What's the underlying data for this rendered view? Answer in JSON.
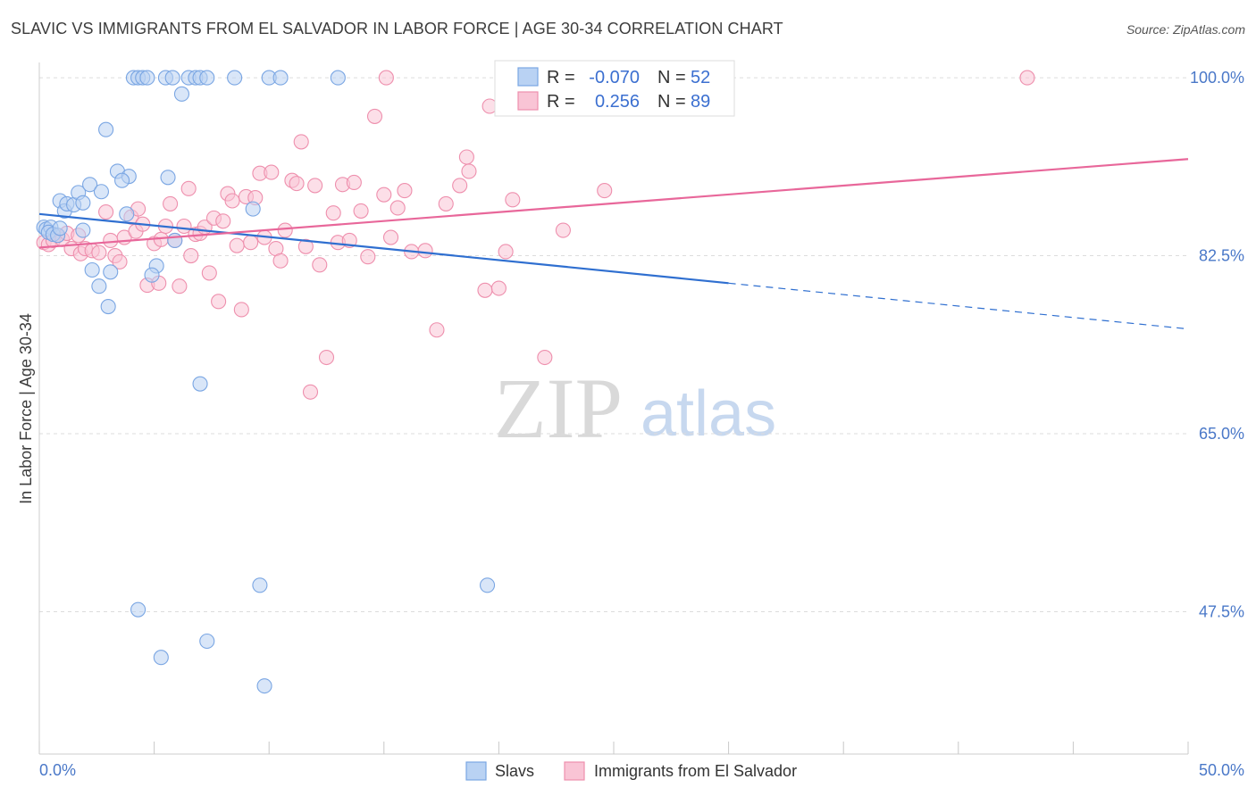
{
  "title": "SLAVIC VS IMMIGRANTS FROM EL SALVADOR IN LABOR FORCE | AGE 30-34 CORRELATION CHART",
  "source": "Source: ZipAtlas.com",
  "watermark": {
    "zip": "ZIP",
    "atlas": "atlas"
  },
  "legend_top": {
    "rows": [
      {
        "r_label": "R =",
        "r_value": "-0.070",
        "n_label": "N =",
        "n_value": "52"
      },
      {
        "r_label": "R =",
        "r_value": "0.256",
        "n_label": "N =",
        "n_value": "89"
      }
    ]
  },
  "legend_bottom": {
    "items": [
      "Slavs",
      "Immigrants from El Salvador"
    ]
  },
  "colors": {
    "slavs_fill": "#b9d2f3",
    "slavs_stroke": "#7aa6e3",
    "slavs_line": "#2f6fd0",
    "salv_fill": "#f9c4d5",
    "salv_stroke": "#ee8fad",
    "salv_line": "#e8679a",
    "tick_label": "#4a78c8",
    "grid": "#dcdcdc"
  },
  "chart_data": {
    "type": "scatter",
    "title": "SLAVIC VS IMMIGRANTS FROM EL SALVADOR IN LABOR FORCE | AGE 30-34 CORRELATION CHART",
    "xlabel": "",
    "ylabel": "In Labor Force | Age 30-34",
    "xlim": [
      0,
      50
    ],
    "ylim": [
      33.5,
      101.5
    ],
    "x_tick_labels": [
      "0.0%",
      "50.0%"
    ],
    "y_ticks": [
      100.0,
      82.5,
      65.0,
      47.5
    ],
    "y_tick_labels": [
      "100.0%",
      "82.5%",
      "65.0%",
      "47.5%"
    ],
    "grid": true,
    "legend_position": "top-center",
    "series": [
      {
        "name": "Slavs",
        "r": -0.07,
        "n": 52,
        "trend": {
          "x": [
            0,
            30,
            50
          ],
          "y": [
            86.6,
            79.8,
            75.3
          ],
          "solid_until_x": 30
        },
        "points": [
          [
            0.2,
            85.3
          ],
          [
            0.3,
            85.1
          ],
          [
            0.5,
            85.3
          ],
          [
            0.4,
            84.8
          ],
          [
            0.6,
            84.6
          ],
          [
            0.8,
            84.5
          ],
          [
            0.9,
            85.2
          ],
          [
            0.9,
            87.9
          ],
          [
            1.1,
            86.9
          ],
          [
            1.2,
            87.6
          ],
          [
            1.5,
            87.5
          ],
          [
            1.7,
            88.7
          ],
          [
            1.9,
            87.7
          ],
          [
            2.2,
            89.5
          ],
          [
            2.7,
            88.8
          ],
          [
            2.9,
            94.9
          ],
          [
            3.4,
            90.8
          ],
          [
            3.9,
            90.3
          ],
          [
            3.6,
            89.9
          ],
          [
            3.8,
            86.6
          ],
          [
            1.9,
            85.0
          ],
          [
            2.3,
            81.1
          ],
          [
            2.6,
            79.5
          ],
          [
            3.1,
            80.9
          ],
          [
            3.0,
            77.5
          ],
          [
            4.1,
            100.0
          ],
          [
            4.3,
            100.0
          ],
          [
            4.5,
            100.0
          ],
          [
            4.7,
            100.0
          ],
          [
            5.5,
            100.0
          ],
          [
            5.8,
            100.0
          ],
          [
            6.2,
            98.4
          ],
          [
            6.5,
            100.0
          ],
          [
            6.8,
            100.0
          ],
          [
            7.0,
            100.0
          ],
          [
            7.3,
            100.0
          ],
          [
            8.5,
            100.0
          ],
          [
            10.0,
            100.0
          ],
          [
            10.5,
            100.0
          ],
          [
            13.0,
            100.0
          ],
          [
            5.6,
            90.2
          ],
          [
            5.1,
            81.5
          ],
          [
            4.9,
            80.6
          ],
          [
            5.9,
            84.0
          ],
          [
            9.3,
            87.1
          ],
          [
            7.0,
            69.9
          ],
          [
            4.3,
            47.7
          ],
          [
            7.3,
            44.6
          ],
          [
            5.3,
            43.0
          ],
          [
            9.6,
            50.1
          ],
          [
            9.8,
            40.2
          ],
          [
            19.5,
            50.1
          ]
        ]
      },
      {
        "name": "Immigrants from El Salvador",
        "r": 0.256,
        "n": 89,
        "trend": {
          "x": [
            0,
            50
          ],
          "y": [
            83.3,
            92.0
          ]
        },
        "points": [
          [
            0.2,
            83.8
          ],
          [
            0.4,
            83.6
          ],
          [
            0.6,
            84.0
          ],
          [
            0.8,
            84.5
          ],
          [
            1.0,
            84.1
          ],
          [
            1.2,
            84.7
          ],
          [
            1.4,
            83.2
          ],
          [
            1.7,
            84.5
          ],
          [
            1.8,
            82.7
          ],
          [
            2.0,
            83.2
          ],
          [
            2.3,
            83.0
          ],
          [
            2.6,
            82.8
          ],
          [
            2.9,
            86.8
          ],
          [
            3.1,
            84.0
          ],
          [
            3.3,
            82.5
          ],
          [
            3.5,
            81.9
          ],
          [
            3.7,
            84.3
          ],
          [
            4.0,
            86.3
          ],
          [
            4.2,
            84.9
          ],
          [
            4.3,
            87.1
          ],
          [
            4.5,
            85.6
          ],
          [
            4.7,
            79.6
          ],
          [
            5.0,
            83.7
          ],
          [
            5.2,
            79.8
          ],
          [
            5.3,
            84.1
          ],
          [
            5.5,
            85.4
          ],
          [
            5.7,
            87.6
          ],
          [
            5.9,
            84.0
          ],
          [
            6.1,
            79.5
          ],
          [
            6.3,
            85.4
          ],
          [
            6.5,
            89.1
          ],
          [
            6.6,
            82.5
          ],
          [
            6.8,
            84.6
          ],
          [
            7.0,
            84.7
          ],
          [
            7.2,
            85.3
          ],
          [
            7.4,
            80.8
          ],
          [
            7.6,
            86.2
          ],
          [
            7.8,
            78.0
          ],
          [
            8.0,
            85.9
          ],
          [
            8.2,
            88.6
          ],
          [
            8.4,
            87.9
          ],
          [
            8.6,
            83.5
          ],
          [
            8.8,
            77.2
          ],
          [
            9.0,
            88.3
          ],
          [
            9.2,
            83.8
          ],
          [
            9.4,
            88.2
          ],
          [
            9.6,
            90.6
          ],
          [
            9.8,
            84.3
          ],
          [
            10.1,
            90.7
          ],
          [
            10.3,
            83.2
          ],
          [
            10.5,
            82.0
          ],
          [
            10.7,
            85.0
          ],
          [
            11.0,
            89.9
          ],
          [
            11.2,
            89.6
          ],
          [
            11.4,
            93.7
          ],
          [
            11.6,
            83.4
          ],
          [
            11.8,
            69.1
          ],
          [
            12.0,
            89.4
          ],
          [
            12.2,
            81.6
          ],
          [
            12.5,
            72.5
          ],
          [
            12.8,
            86.7
          ],
          [
            13.0,
            83.8
          ],
          [
            13.2,
            89.5
          ],
          [
            13.5,
            84.0
          ],
          [
            13.7,
            89.7
          ],
          [
            14.0,
            86.9
          ],
          [
            14.3,
            82.4
          ],
          [
            14.6,
            96.2
          ],
          [
            15.0,
            88.5
          ],
          [
            15.3,
            84.3
          ],
          [
            15.6,
            87.2
          ],
          [
            15.9,
            88.9
          ],
          [
            16.2,
            82.9
          ],
          [
            16.8,
            83.0
          ],
          [
            17.3,
            75.2
          ],
          [
            17.7,
            87.6
          ],
          [
            18.3,
            89.4
          ],
          [
            18.6,
            92.2
          ],
          [
            18.7,
            90.8
          ],
          [
            19.4,
            79.1
          ],
          [
            19.6,
            97.2
          ],
          [
            20.0,
            79.3
          ],
          [
            20.3,
            82.9
          ],
          [
            20.6,
            88.0
          ],
          [
            22.0,
            72.5
          ],
          [
            22.8,
            85.0
          ],
          [
            24.6,
            88.9
          ],
          [
            15.1,
            100.0
          ],
          [
            43.0,
            100.0
          ]
        ]
      }
    ]
  }
}
